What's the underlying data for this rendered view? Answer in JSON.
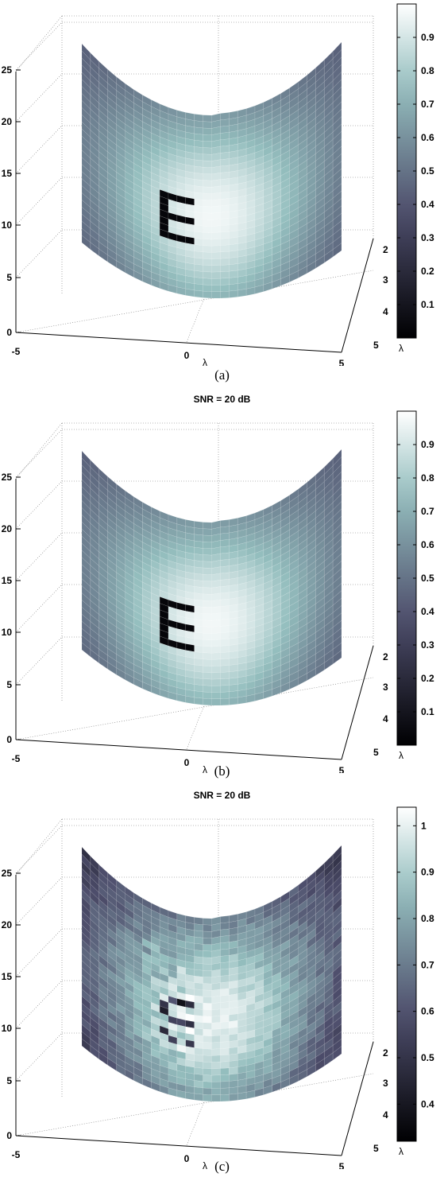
{
  "figure": {
    "panels": [
      {
        "caption": "(a)",
        "title": "",
        "colorbar_ticks": [
          "0.1",
          "0.2",
          "0.3",
          "0.4",
          "0.5",
          "0.6",
          "0.7",
          "0.8",
          "0.9"
        ],
        "colorbar_min": 0.0,
        "colorbar_max": 1.0,
        "z_ticks": [
          "0",
          "5",
          "10",
          "15",
          "20",
          "25"
        ],
        "x_ticks": [
          "-5",
          "0",
          "5"
        ],
        "y_ticks": [
          "2",
          "3",
          "4",
          "5"
        ],
        "x_label": "λ",
        "y_label": "λ",
        "noisy": false
      },
      {
        "caption": "(b)",
        "title": "SNR = 20 dB",
        "colorbar_ticks": [
          "0.1",
          "0.2",
          "0.3",
          "0.4",
          "0.5",
          "0.6",
          "0.7",
          "0.8",
          "0.9"
        ],
        "colorbar_min": 0.0,
        "colorbar_max": 1.0,
        "z_ticks": [
          "0",
          "5",
          "10",
          "15",
          "20",
          "25"
        ],
        "x_ticks": [
          "-5",
          "0",
          "5"
        ],
        "y_ticks": [
          "2",
          "3",
          "4",
          "5"
        ],
        "x_label": "λ",
        "y_label": "λ",
        "noisy": false
      },
      {
        "caption": "(c)",
        "title": "SNR = 20 dB",
        "colorbar_ticks": [
          "0.4",
          "0.5",
          "0.6",
          "0.7",
          "0.8",
          "0.9",
          "1"
        ],
        "colorbar_min": 0.32,
        "colorbar_max": 1.04,
        "z_ticks": [
          "0",
          "5",
          "10",
          "15",
          "20",
          "25"
        ],
        "x_ticks": [
          "-5",
          "0",
          "5"
        ],
        "y_ticks": [
          "2",
          "3",
          "4",
          "5"
        ],
        "x_label": "λ",
        "y_label": "λ",
        "noisy": true
      }
    ]
  },
  "chart_data": [
    {
      "type": "heatmap",
      "title": "",
      "x_range": [
        -5,
        5
      ],
      "y_range": [
        2,
        5
      ],
      "z_range": [
        0,
        25
      ],
      "color_range": [
        0,
        1
      ]
    },
    {
      "type": "heatmap",
      "title": "SNR = 20 dB",
      "x_range": [
        -5,
        5
      ],
      "y_range": [
        2,
        5
      ],
      "z_range": [
        0,
        25
      ],
      "color_range": [
        0,
        1
      ]
    },
    {
      "type": "heatmap",
      "title": "SNR = 20 dB",
      "x_range": [
        -5,
        5
      ],
      "y_range": [
        2,
        5
      ],
      "z_range": [
        0,
        25
      ],
      "color_range": [
        0.32,
        1.04
      ]
    }
  ]
}
